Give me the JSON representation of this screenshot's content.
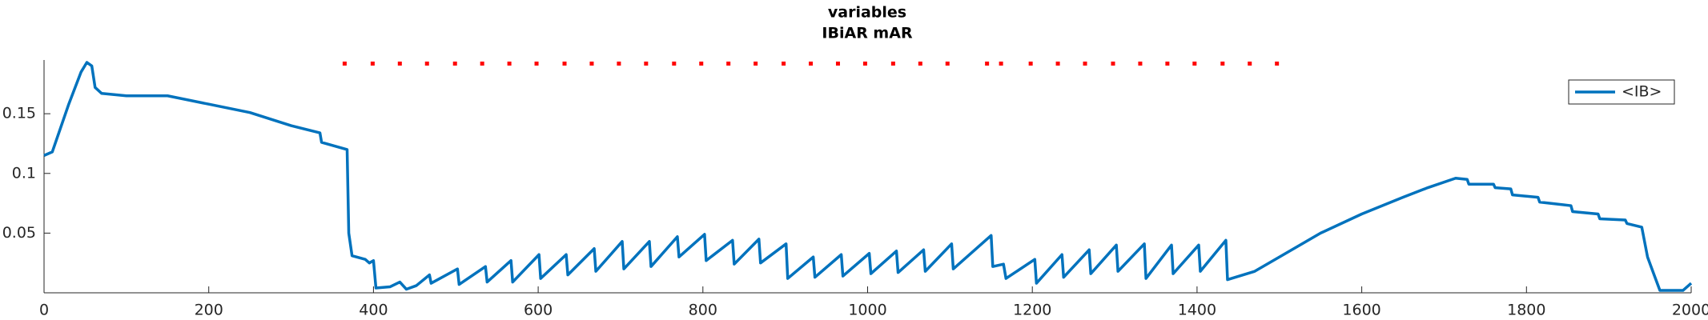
{
  "chart_data": {
    "type": "line",
    "title": [
      "variables",
      "IBiAR mAR"
    ],
    "xlim": [
      0,
      2000
    ],
    "xticks": [
      0,
      200,
      400,
      600,
      800,
      1000,
      1200,
      1400,
      1600,
      1800,
      2000
    ],
    "ylim": [
      0,
      0.195
    ],
    "yticks": [
      0.05,
      0.1,
      0.15
    ],
    "grid": false,
    "legend": "upper-right",
    "series": [
      {
        "name": "<IB>",
        "color": "#0072bd",
        "style": "line",
        "x": [
          0,
          10,
          30,
          45,
          52,
          58,
          62,
          70,
          100,
          150,
          200,
          250,
          300,
          335,
          337,
          368,
          370,
          374,
          390,
          395,
          400,
          403,
          420,
          432,
          440,
          452,
          468,
          470,
          502,
          504,
          536,
          538,
          567,
          569,
          601,
          603,
          634,
          636,
          668,
          670,
          702,
          704,
          735,
          737,
          769,
          771,
          802,
          804,
          836,
          838,
          868,
          870,
          901,
          903,
          934,
          936,
          968,
          970,
          1002,
          1004,
          1035,
          1037,
          1068,
          1070,
          1102,
          1104,
          1150,
          1152,
          1165,
          1168,
          1203,
          1205,
          1236,
          1238,
          1269,
          1271,
          1302,
          1304,
          1336,
          1338,
          1369,
          1371,
          1402,
          1404,
          1435,
          1437,
          1470,
          1500,
          1550,
          1600,
          1650,
          1680,
          1714,
          1728,
          1730,
          1760,
          1762,
          1781,
          1783,
          1814,
          1816,
          1854,
          1856,
          1887,
          1889,
          1920,
          1922,
          1940,
          1947,
          1955,
          1962,
          1990,
          2000
        ],
        "values": [
          0.115,
          0.118,
          0.158,
          0.185,
          0.193,
          0.19,
          0.172,
          0.167,
          0.165,
          0.165,
          0.158,
          0.151,
          0.14,
          0.134,
          0.126,
          0.12,
          0.05,
          0.031,
          0.028,
          0.025,
          0.027,
          0.004,
          0.005,
          0.009,
          0.003,
          0.006,
          0.015,
          0.008,
          0.02,
          0.007,
          0.022,
          0.009,
          0.027,
          0.009,
          0.032,
          0.012,
          0.032,
          0.015,
          0.037,
          0.018,
          0.043,
          0.02,
          0.043,
          0.022,
          0.047,
          0.03,
          0.049,
          0.027,
          0.044,
          0.024,
          0.045,
          0.025,
          0.041,
          0.012,
          0.03,
          0.013,
          0.032,
          0.014,
          0.033,
          0.016,
          0.035,
          0.017,
          0.036,
          0.018,
          0.041,
          0.02,
          0.048,
          0.022,
          0.024,
          0.012,
          0.028,
          0.008,
          0.032,
          0.013,
          0.036,
          0.016,
          0.04,
          0.018,
          0.041,
          0.012,
          0.04,
          0.016,
          0.04,
          0.018,
          0.044,
          0.011,
          0.018,
          0.03,
          0.05,
          0.066,
          0.08,
          0.088,
          0.096,
          0.095,
          0.091,
          0.091,
          0.088,
          0.087,
          0.082,
          0.08,
          0.076,
          0.073,
          0.068,
          0.066,
          0.062,
          0.061,
          0.058,
          0.055,
          0.03,
          0.015,
          0.002,
          0.002,
          0.008
        ]
      },
      {
        "color": "#ff0000",
        "style": "markers",
        "x": [
          365,
          399,
          432,
          465,
          499,
          532,
          565,
          598,
          632,
          665,
          698,
          731,
          765,
          798,
          831,
          864,
          898,
          931,
          964,
          997,
          1031,
          1064,
          1097,
          1145,
          1162,
          1198,
          1231,
          1264,
          1298,
          1331,
          1364,
          1397,
          1431,
          1464,
          1497
        ],
        "values": [
          0.192,
          0.192,
          0.192,
          0.192,
          0.192,
          0.192,
          0.192,
          0.192,
          0.192,
          0.192,
          0.192,
          0.192,
          0.192,
          0.192,
          0.192,
          0.192,
          0.192,
          0.192,
          0.192,
          0.192,
          0.192,
          0.192,
          0.192,
          0.192,
          0.192,
          0.192,
          0.192,
          0.192,
          0.192,
          0.192,
          0.192,
          0.192,
          0.192,
          0.192,
          0.192
        ]
      }
    ]
  }
}
